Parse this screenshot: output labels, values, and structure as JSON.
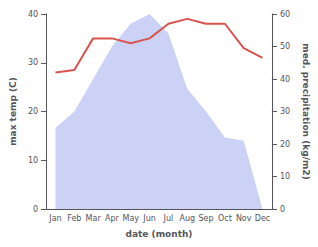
{
  "chart_data": {
    "type": "line",
    "categories": [
      "Jan",
      "Feb",
      "Mar",
      "Apr",
      "May",
      "Jun",
      "Jul",
      "Aug",
      "Sep",
      "Oct",
      "Nov",
      "Dec"
    ],
    "xlabel": "date (month)",
    "ylabel": "max temp (C)",
    "y2label": "med. precipitation (kg/m2)",
    "ylim": [
      0,
      40
    ],
    "yticks": [
      0,
      10,
      20,
      30,
      40
    ],
    "y2lim": [
      0,
      60
    ],
    "y2ticks": [
      0,
      10,
      20,
      30,
      40,
      50,
      60
    ],
    "grid": false,
    "series": [
      {
        "type": "area",
        "axis": "y2",
        "color": "#c5cdf5",
        "values": [
          25,
          30,
          40,
          50,
          57,
          60,
          54,
          37,
          30,
          22,
          21,
          0
        ]
      },
      {
        "type": "line",
        "color": "#d9534f",
        "values": [
          28,
          28.5,
          35,
          35,
          34,
          35,
          38,
          39,
          38,
          38,
          33,
          31
        ]
      }
    ]
  }
}
